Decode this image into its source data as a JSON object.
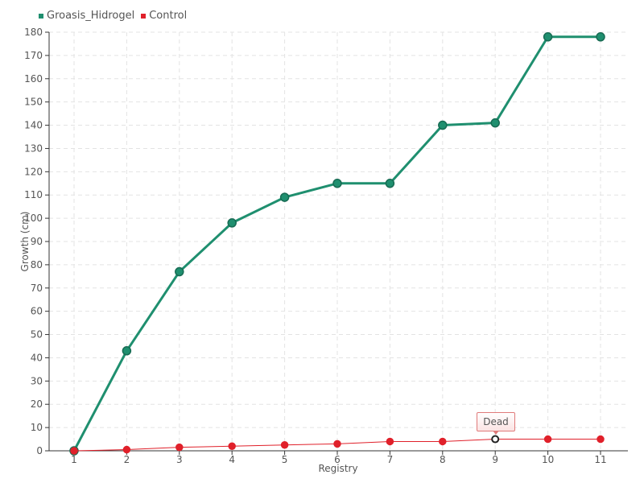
{
  "legend": {
    "items": [
      {
        "label": "Groasis_Hidrogel",
        "color": "#1f8f6f"
      },
      {
        "label": "Control",
        "color": "#e0202a"
      }
    ]
  },
  "tooltip": {
    "text": "Dead"
  },
  "chart_data": {
    "type": "line",
    "xlabel": "Registry",
    "ylabel": "Growth (cm)",
    "categories": [
      "1",
      "2",
      "3",
      "4",
      "5",
      "6",
      "7",
      "8",
      "9",
      "10",
      "11"
    ],
    "ylim": [
      0,
      180
    ],
    "ytick_step": 10,
    "grid": true,
    "legend_position": "top-left",
    "series": [
      {
        "name": "Groasis_Hidrogel",
        "color": "#1f8f6f",
        "values": [
          0,
          43,
          77,
          98,
          109,
          115,
          115,
          140,
          141,
          178,
          178
        ]
      },
      {
        "name": "Control",
        "color": "#e0202a",
        "values": [
          0,
          0.5,
          1.5,
          2,
          2.5,
          3,
          4,
          4,
          5,
          5,
          5
        ]
      }
    ],
    "annotations": [
      {
        "series": "Control",
        "category": "9",
        "text": "Dead"
      }
    ]
  }
}
